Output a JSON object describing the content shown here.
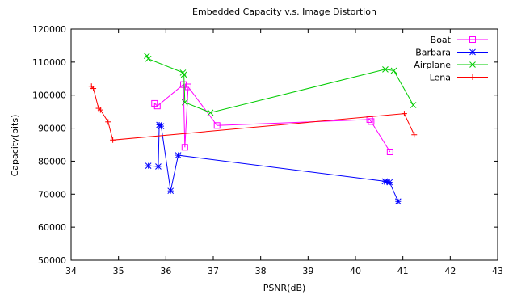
{
  "chart_data": {
    "type": "line",
    "title": "Embedded Capacity v.s. Image Distortion",
    "xlabel": "PSNR(dB)",
    "ylabel": "Capacity(bits)",
    "xlim": [
      34,
      43
    ],
    "ylim": [
      50000,
      120000
    ],
    "xticks": [
      34,
      35,
      36,
      37,
      38,
      39,
      40,
      41,
      42,
      43
    ],
    "yticks": [
      50000,
      60000,
      70000,
      80000,
      90000,
      100000,
      110000,
      120000
    ],
    "xtick_labels": [
      "34",
      "35",
      "36",
      "37",
      "38",
      "39",
      "40",
      "41",
      "42",
      "43"
    ],
    "ytick_labels": [
      "50000",
      "60000",
      "70000",
      "80000",
      "90000",
      "100000",
      "110000",
      "120000"
    ],
    "grid": false,
    "legend_position": "top-right",
    "series": [
      {
        "name": "Boat",
        "color": "#ff00ff",
        "marker": "square",
        "points": [
          [
            35.76,
            97500
          ],
          [
            35.82,
            96700
          ],
          [
            36.37,
            103200
          ],
          [
            36.4,
            84200
          ],
          [
            36.47,
            102500
          ],
          [
            37.08,
            90800
          ],
          [
            40.3,
            92600
          ],
          [
            40.33,
            92000
          ],
          [
            40.73,
            82800
          ]
        ]
      },
      {
        "name": "Barbara",
        "color": "#0000ff",
        "marker": "star",
        "points": [
          [
            35.63,
            78600
          ],
          [
            35.84,
            78400
          ],
          [
            35.86,
            91000
          ],
          [
            35.9,
            90600
          ],
          [
            36.1,
            71000
          ],
          [
            36.26,
            81800
          ],
          [
            40.62,
            73900
          ],
          [
            40.66,
            73800
          ],
          [
            40.72,
            73600
          ],
          [
            40.9,
            67800
          ]
        ]
      },
      {
        "name": "Airplane",
        "color": "#00cc00",
        "marker": "x",
        "points": [
          [
            35.6,
            111900
          ],
          [
            35.63,
            111000
          ],
          [
            36.36,
            106800
          ],
          [
            36.38,
            106200
          ],
          [
            36.4,
            97800
          ],
          [
            36.94,
            94700
          ],
          [
            40.63,
            107800
          ],
          [
            40.81,
            107400
          ],
          [
            41.22,
            97000
          ]
        ]
      },
      {
        "name": "Lena",
        "color": "#ff0000",
        "marker": "plus",
        "points": [
          [
            34.43,
            102700
          ],
          [
            34.47,
            102000
          ],
          [
            34.58,
            96000
          ],
          [
            34.62,
            95500
          ],
          [
            34.78,
            91900
          ],
          [
            34.88,
            86400
          ],
          [
            41.03,
            94400
          ],
          [
            41.24,
            88000
          ]
        ]
      }
    ]
  }
}
